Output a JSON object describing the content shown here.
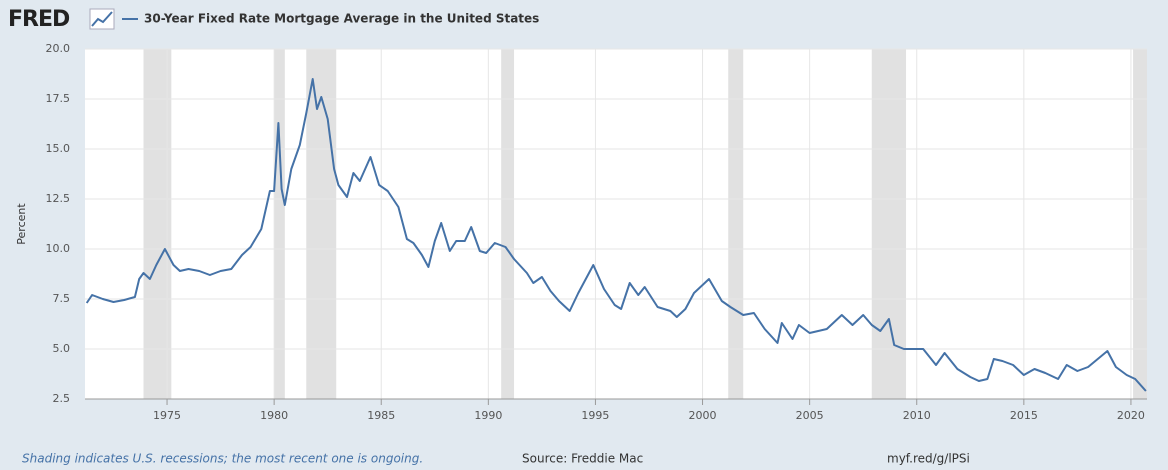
{
  "brand": "FRED",
  "chart_data": {
    "type": "line",
    "ylabel": "Percent",
    "xlim": [
      1971.17,
      2020.75
    ],
    "ylim": [
      2.5,
      20
    ],
    "xticks": [
      1975,
      1980,
      1985,
      1990,
      1995,
      2000,
      2005,
      2010,
      2015,
      2020
    ],
    "yticks": [
      2.5,
      {
        "value": 5,
        "label": "5.0"
      },
      7.5,
      {
        "value": 10,
        "label": "10.0"
      },
      12.5,
      {
        "value": 15,
        "label": "15.0"
      },
      17.5,
      {
        "value": 20,
        "label": "20.0"
      }
    ],
    "grid": true,
    "recession_color": "#e1e1e1",
    "recessions": [
      [
        1973.9,
        1975.2
      ],
      [
        1980.0,
        1980.5
      ],
      [
        1981.5,
        1982.9
      ],
      [
        1990.6,
        1991.2
      ],
      [
        2001.2,
        2001.9
      ],
      [
        2007.9,
        2009.5
      ],
      [
        2020.1,
        2020.75
      ]
    ],
    "x": [
      1971.25,
      1971.5,
      1972.0,
      1972.5,
      1973.0,
      1973.5,
      1973.7,
      1973.9,
      1974.2,
      1974.5,
      1974.9,
      1975.3,
      1975.6,
      1976.0,
      1976.5,
      1977.0,
      1977.5,
      1978.0,
      1978.5,
      1978.9,
      1979.4,
      1979.8,
      1980.0,
      1980.2,
      1980.35,
      1980.5,
      1980.8,
      1981.2,
      1981.5,
      1981.8,
      1982.0,
      1982.2,
      1982.5,
      1982.8,
      1983.0,
      1983.4,
      1983.7,
      1984.0,
      1984.5,
      1984.9,
      1985.3,
      1985.8,
      1986.2,
      1986.5,
      1986.9,
      1987.2,
      1987.5,
      1987.8,
      1988.2,
      1988.5,
      1988.9,
      1989.2,
      1989.6,
      1989.9,
      1990.3,
      1990.8,
      1991.2,
      1991.8,
      1992.1,
      1992.5,
      1992.9,
      1993.3,
      1993.8,
      1994.2,
      1994.9,
      1995.4,
      1995.9,
      1996.2,
      1996.6,
      1997.0,
      1997.3,
      1997.9,
      1998.5,
      1998.8,
      1999.2,
      1999.6,
      2000.3,
      2000.9,
      2001.3,
      2001.9,
      2002.4,
      2002.9,
      2003.5,
      2003.7,
      2004.2,
      2004.5,
      2005.0,
      2005.8,
      2006.5,
      2007.0,
      2007.5,
      2007.9,
      2008.3,
      2008.7,
      2008.95,
      2009.4,
      2009.9,
      2010.3,
      2010.9,
      2011.3,
      2011.9,
      2012.5,
      2012.9,
      2013.3,
      2013.6,
      2014.0,
      2014.5,
      2015.0,
      2015.5,
      2016.0,
      2016.6,
      2017.0,
      2017.5,
      2018.0,
      2018.9,
      2019.3,
      2019.8,
      2020.2,
      2020.7
    ],
    "series": [
      {
        "name": "30-Year Fixed Rate Mortgage Average in the United States",
        "color": "#4572a7",
        "values": [
          7.3,
          7.7,
          7.5,
          7.35,
          7.45,
          7.6,
          8.5,
          8.8,
          8.5,
          9.2,
          10.0,
          9.2,
          8.9,
          9.0,
          8.9,
          8.7,
          8.9,
          9.0,
          9.7,
          10.1,
          11.0,
          12.9,
          12.9,
          16.3,
          13.0,
          12.2,
          14.0,
          15.2,
          16.8,
          18.5,
          17.0,
          17.6,
          16.5,
          14.0,
          13.2,
          12.6,
          13.8,
          13.4,
          14.6,
          13.2,
          12.9,
          12.1,
          10.5,
          10.3,
          9.7,
          9.1,
          10.4,
          11.3,
          9.9,
          10.4,
          10.4,
          11.1,
          9.9,
          9.8,
          10.3,
          10.1,
          9.5,
          8.8,
          8.3,
          8.6,
          7.9,
          7.4,
          6.9,
          7.8,
          9.2,
          8.0,
          7.2,
          7.0,
          8.3,
          7.7,
          8.1,
          7.1,
          6.9,
          6.6,
          7.0,
          7.8,
          8.5,
          7.4,
          7.1,
          6.7,
          6.8,
          6.0,
          5.3,
          6.3,
          5.5,
          6.2,
          5.8,
          6.0,
          6.7,
          6.2,
          6.7,
          6.2,
          5.9,
          6.5,
          5.2,
          5.0,
          5.0,
          5.0,
          4.2,
          4.8,
          4.0,
          3.6,
          3.4,
          3.5,
          4.5,
          4.4,
          4.2,
          3.7,
          4.0,
          3.8,
          3.5,
          4.2,
          3.9,
          4.1,
          4.9,
          4.1,
          3.7,
          3.5,
          2.9
        ]
      }
    ]
  },
  "footer": {
    "note": "Shading indicates U.S. recessions; the most recent one is ongoing.",
    "source": "Source: Freddie Mac",
    "link": "myf.red/g/lPSi"
  }
}
